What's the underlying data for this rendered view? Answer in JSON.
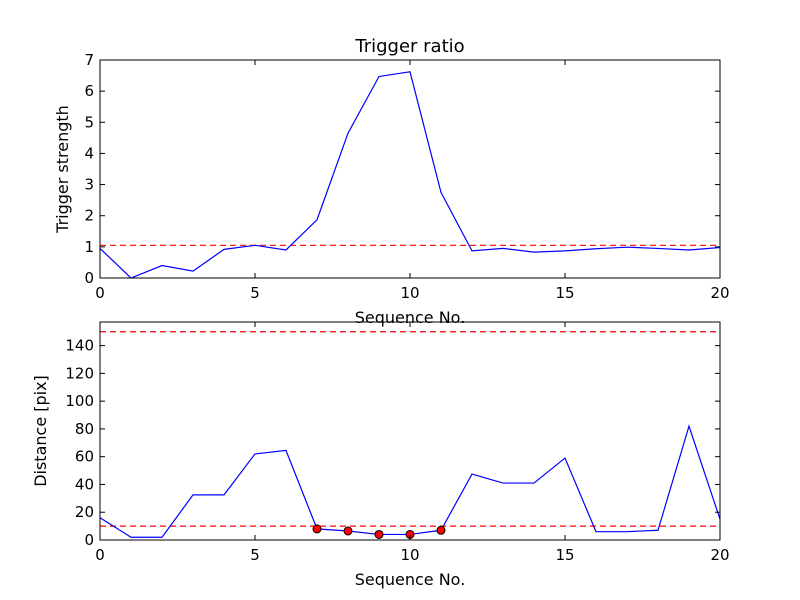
{
  "chart_data": [
    {
      "type": "line",
      "title": "Trigger ratio",
      "xlabel": "Sequence No.",
      "ylabel": "Trigger strength",
      "xlim": [
        0,
        20
      ],
      "ylim": [
        0,
        7
      ],
      "xticks": [
        0,
        5,
        10,
        15,
        20
      ],
      "yticks": [
        0,
        1,
        2,
        3,
        4,
        5,
        6,
        7
      ],
      "grid": false,
      "colors": {
        "series": "#0000ff",
        "threshold": "#ff0000"
      },
      "series": [
        {
          "x": [
            0,
            1,
            2,
            3,
            4,
            5,
            6,
            7,
            8,
            9,
            10,
            11,
            12,
            13,
            14,
            15,
            16,
            17,
            18,
            19,
            20
          ],
          "values": [
            0.95,
            0.0,
            0.4,
            0.22,
            0.92,
            1.05,
            0.9,
            1.87,
            4.65,
            6.47,
            6.62,
            2.75,
            0.87,
            0.95,
            0.83,
            0.87,
            0.94,
            0.99,
            0.95,
            0.9,
            0.98
          ]
        }
      ],
      "hlines": [
        1.05
      ]
    },
    {
      "type": "line",
      "title": "",
      "xlabel": "Sequence No.",
      "ylabel": "Distance [pix]",
      "xlim": [
        0,
        20
      ],
      "ylim": [
        0,
        157
      ],
      "xticks": [
        0,
        5,
        10,
        15,
        20
      ],
      "yticks": [
        0,
        20,
        40,
        60,
        80,
        100,
        120,
        140
      ],
      "grid": false,
      "colors": {
        "series": "#0000ff",
        "threshold": "#ff0000",
        "markers": "#ff0000"
      },
      "series": [
        {
          "x": [
            0,
            1,
            2,
            3,
            4,
            5,
            6,
            7,
            8,
            9,
            10,
            11,
            12,
            13,
            14,
            15,
            16,
            17,
            18,
            19,
            20
          ],
          "values": [
            16,
            2,
            2,
            32.5,
            32.5,
            62,
            64.5,
            8,
            6.5,
            4,
            4,
            7,
            47.5,
            41,
            41,
            59,
            6,
            6,
            7,
            82,
            15
          ]
        }
      ],
      "markers": {
        "x": [
          7,
          8,
          9,
          10,
          11
        ],
        "values": [
          8,
          6.5,
          4,
          4,
          7
        ]
      },
      "hlines": [
        150,
        10
      ]
    }
  ]
}
